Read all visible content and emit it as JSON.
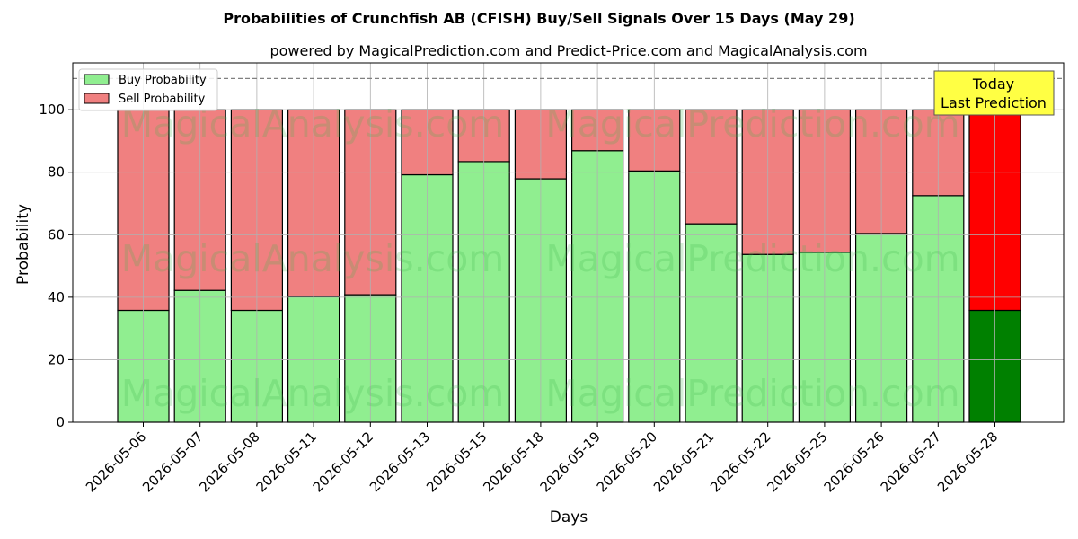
{
  "chart_data": {
    "type": "bar",
    "stacked": true,
    "title": "Probabilities of Crunchfish AB (CFISH) Buy/Sell Signals Over 15 Days (May 29)",
    "subtitle": "powered by MagicalPrediction.com and Predict-Price.com and MagicalAnalysis.com",
    "xlabel": "Days",
    "ylabel": "Probability",
    "ylim": [
      0,
      115
    ],
    "yticks": [
      0,
      20,
      40,
      60,
      80,
      100
    ],
    "reference_line": 110,
    "grid": true,
    "legend_position": "top-left",
    "categories": [
      "2026-05-06",
      "2026-05-07",
      "2026-05-08",
      "2026-05-11",
      "2026-05-12",
      "2026-05-13",
      "2026-05-15",
      "2026-05-18",
      "2026-05-19",
      "2026-05-20",
      "2026-05-21",
      "2026-05-22",
      "2026-05-25",
      "2026-05-26",
      "2026-05-27",
      "2026-05-28"
    ],
    "series": [
      {
        "name": "Buy Probability",
        "color": "#90ee90",
        "highlight_color": "#008000",
        "values": [
          35.8,
          42.2,
          35.8,
          40.2,
          40.8,
          79.2,
          83.4,
          77.9,
          86.9,
          80.4,
          63.5,
          53.7,
          54.4,
          60.4,
          72.5,
          35.8
        ]
      },
      {
        "name": "Sell Probability",
        "color": "#f08080",
        "highlight_color": "#ff0000",
        "values": [
          64.2,
          57.8,
          64.2,
          59.8,
          59.2,
          20.8,
          16.6,
          22.1,
          13.1,
          19.6,
          36.5,
          46.3,
          45.6,
          39.6,
          27.5,
          64.2
        ]
      }
    ],
    "highlight_index": 15,
    "annotation": {
      "line1": "Today",
      "line2": "Last Prediction",
      "box_color": "#ffff44"
    },
    "watermarks": [
      "MagicalAnalysis.com",
      "MagicalPrediction.com"
    ]
  }
}
